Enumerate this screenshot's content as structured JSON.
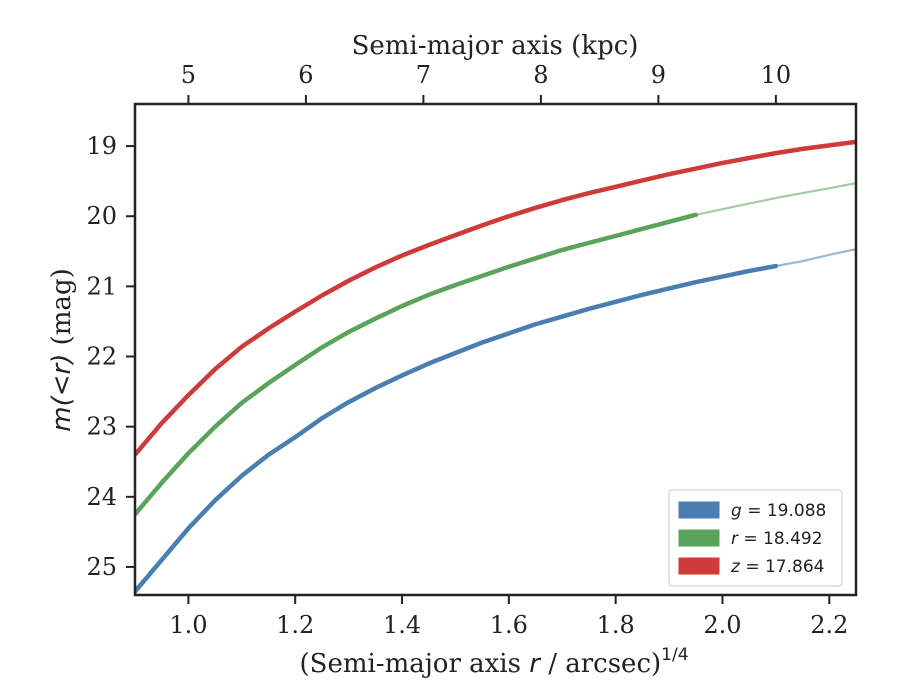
{
  "chart_data": {
    "type": "line",
    "title": "",
    "xlabel": "(Semi-major axis r / arcsec)",
    "xlabel_prefix": "(Semi-major axis ",
    "xlabel_var": "r",
    "xlabel_suffix": " / arcsec)",
    "xlabel_sup": "1/4",
    "ylabel": "m(<r) (mag)",
    "ylabel_math": "m(<r)",
    "ylabel_unit": " (mag)",
    "top_xlabel": "Semi-major axis (kpc)",
    "xlim": [
      0.9,
      2.25
    ],
    "ylim": [
      25.4,
      18.4
    ],
    "y_inverted": true,
    "x_ticks": [
      1.0,
      1.2,
      1.4,
      1.6,
      1.8,
      2.0,
      2.2
    ],
    "x_tick_labels": [
      "1.0",
      "1.2",
      "1.4",
      "1.6",
      "1.8",
      "2.0",
      "2.2"
    ],
    "y_ticks": [
      19,
      20,
      21,
      22,
      23,
      24,
      25
    ],
    "y_tick_labels": [
      "19",
      "20",
      "21",
      "22",
      "23",
      "24",
      "25"
    ],
    "top_axis_ticks_data_x": [
      1.0,
      1.22,
      1.44,
      1.66,
      1.88,
      2.1
    ],
    "top_axis_tick_labels": [
      "5",
      "6",
      "7",
      "8",
      "9",
      "10"
    ],
    "grid": false,
    "legend_position": "bottom-right",
    "series": [
      {
        "name": "g = 19.088",
        "name_var": "g",
        "name_value": "= 19.088",
        "color": "#4a7eb0",
        "x": [
          0.9,
          0.95,
          1.0,
          1.05,
          1.1,
          1.15,
          1.2,
          1.25,
          1.3,
          1.35,
          1.4,
          1.45,
          1.5,
          1.55,
          1.6,
          1.65,
          1.7,
          1.75,
          1.8,
          1.85,
          1.9,
          1.95,
          2.0,
          2.05,
          2.1
        ],
        "y": [
          25.35,
          24.9,
          24.45,
          24.05,
          23.7,
          23.4,
          23.15,
          22.88,
          22.65,
          22.45,
          22.27,
          22.1,
          21.95,
          21.8,
          21.67,
          21.54,
          21.43,
          21.32,
          21.22,
          21.12,
          21.03,
          20.94,
          20.86,
          20.78,
          20.71
        ],
        "extension_x": [
          2.1,
          2.15,
          2.2,
          2.25
        ],
        "extension_y": [
          20.71,
          20.64,
          20.55,
          20.47
        ]
      },
      {
        "name": "r = 18.492",
        "name_var": "r",
        "name_value": "= 18.492",
        "color": "#5aa35a",
        "x": [
          0.9,
          0.95,
          1.0,
          1.05,
          1.1,
          1.15,
          1.2,
          1.25,
          1.3,
          1.35,
          1.4,
          1.45,
          1.5,
          1.55,
          1.6,
          1.65,
          1.7,
          1.75,
          1.8,
          1.85,
          1.9,
          1.95
        ],
        "y": [
          24.25,
          23.8,
          23.38,
          23.0,
          22.66,
          22.38,
          22.12,
          21.87,
          21.65,
          21.46,
          21.28,
          21.12,
          20.98,
          20.85,
          20.72,
          20.6,
          20.48,
          20.38,
          20.28,
          20.18,
          20.08,
          19.98
        ],
        "extension_x": [
          1.95,
          2.0,
          2.05,
          2.1,
          2.15,
          2.2,
          2.25
        ],
        "extension_y": [
          19.98,
          19.9,
          19.82,
          19.74,
          19.67,
          19.6,
          19.53
        ]
      },
      {
        "name": "z = 17.864",
        "name_var": "z",
        "name_value": "= 17.864",
        "color": "#cf3a3a",
        "x": [
          0.9,
          0.95,
          1.0,
          1.05,
          1.1,
          1.15,
          1.2,
          1.25,
          1.3,
          1.35,
          1.4,
          1.45,
          1.5,
          1.55,
          1.6,
          1.65,
          1.7,
          1.75,
          1.8,
          1.85,
          1.9,
          1.95,
          2.0,
          2.05,
          2.1,
          2.15,
          2.2,
          2.25
        ],
        "y": [
          23.4,
          22.95,
          22.55,
          22.18,
          21.86,
          21.6,
          21.36,
          21.13,
          20.92,
          20.73,
          20.56,
          20.41,
          20.27,
          20.13,
          20.0,
          19.88,
          19.77,
          19.67,
          19.58,
          19.49,
          19.4,
          19.32,
          19.24,
          19.17,
          19.1,
          19.04,
          18.99,
          18.94
        ]
      }
    ]
  }
}
